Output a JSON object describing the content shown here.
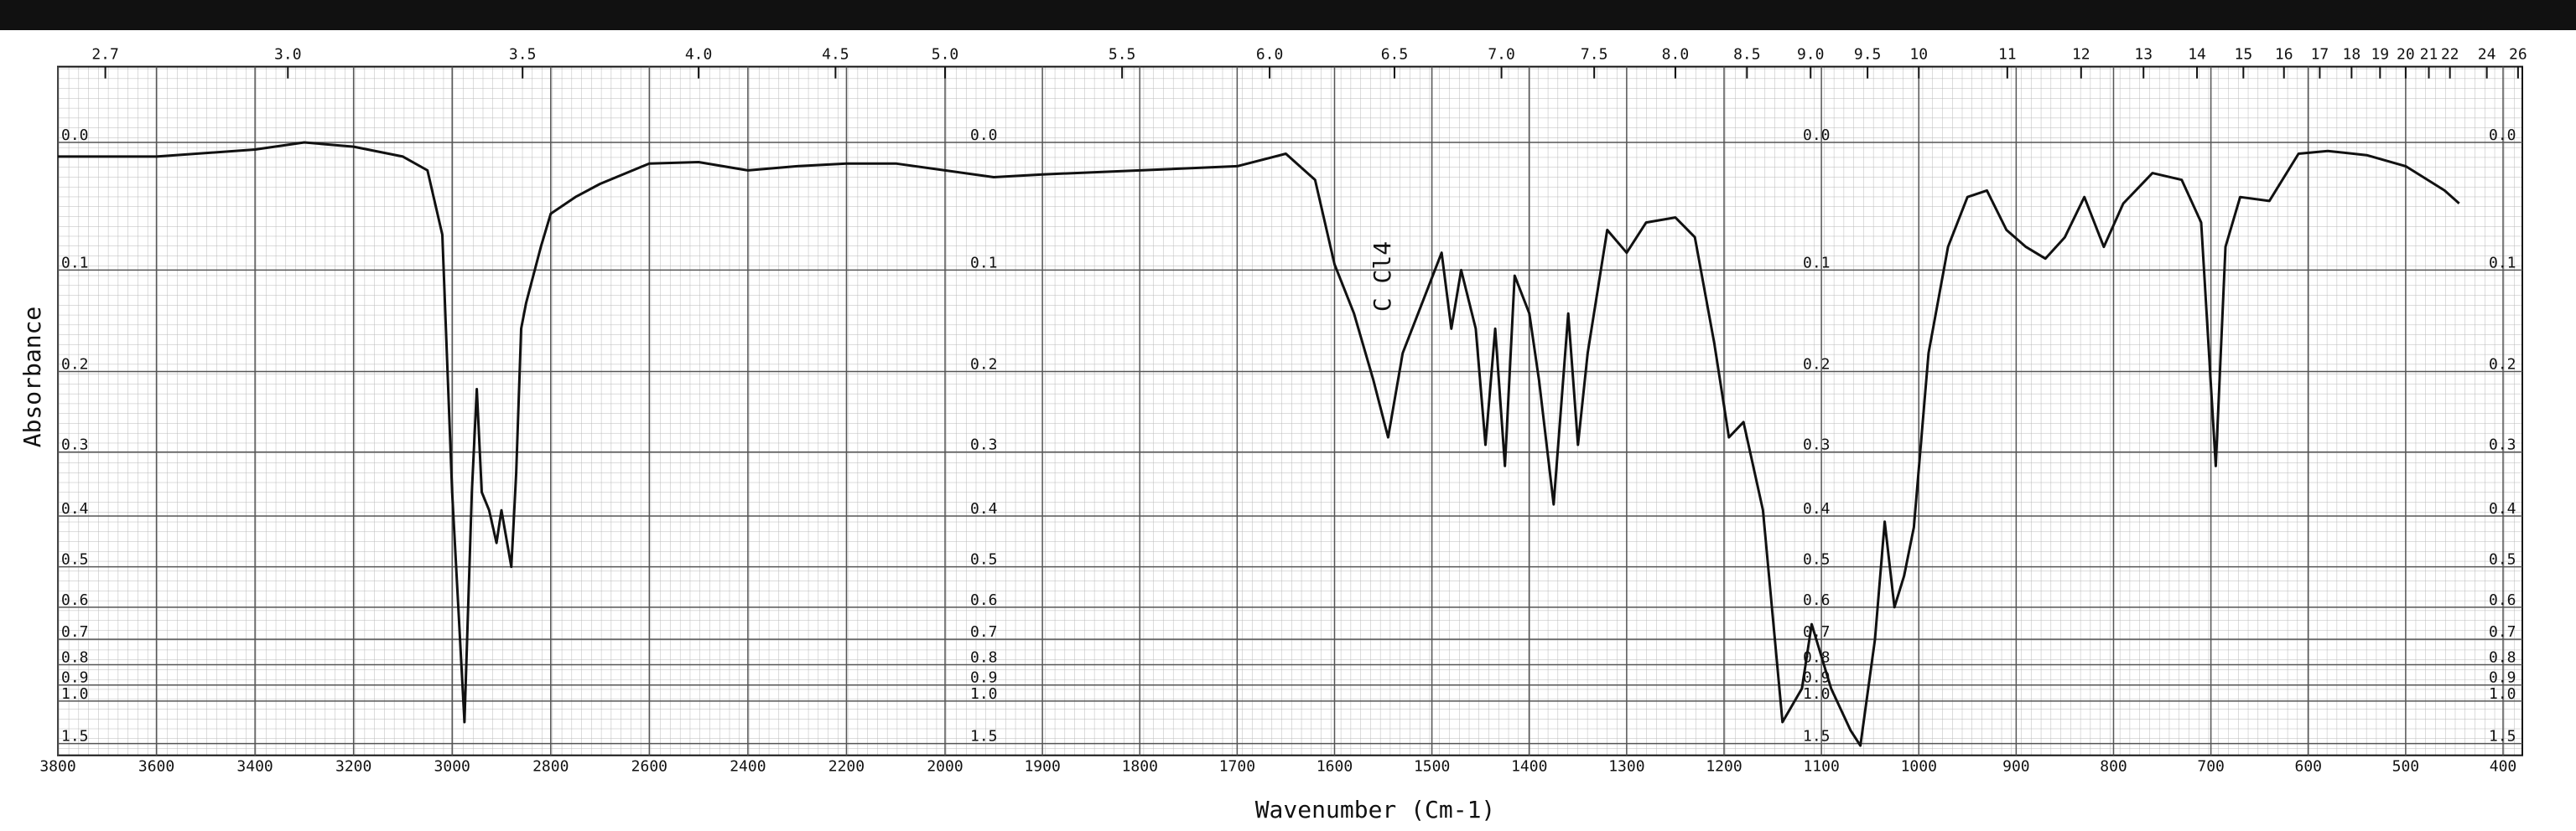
{
  "chart_data": {
    "type": "line",
    "title_left": "Absorbance",
    "x_label": "Wavenumber (Cm-1)",
    "annotation": "C Cl4",
    "y_scale": "transmittance",
    "x_break": 2000,
    "xlim": [
      3800,
      400
    ],
    "ylim": [
      -0.05,
      1.9
    ],
    "xticks": [
      3800,
      3600,
      3400,
      3200,
      3000,
      2800,
      2600,
      2400,
      2200,
      2000,
      1900,
      1800,
      1700,
      1600,
      1500,
      1400,
      1300,
      1200,
      1100,
      1000,
      900,
      800,
      700,
      600,
      500,
      400
    ],
    "x2ticks": [
      2.7,
      {
        "value": 3,
        "label": "3.0"
      },
      3.5,
      {
        "value": 4,
        "label": "4.0"
      },
      4.5,
      {
        "value": 5,
        "label": "5.0"
      },
      5.5,
      {
        "value": 6,
        "label": "6.0"
      },
      6.5,
      {
        "value": 7,
        "label": "7.0"
      },
      7.5,
      {
        "value": 8,
        "label": "8.0"
      },
      8.5,
      {
        "value": 9,
        "label": "9.0"
      },
      9.5,
      10,
      11,
      12,
      13,
      14,
      15,
      16,
      17,
      18,
      19,
      20,
      21,
      22,
      24,
      26
    ],
    "yticks": [
      {
        "value": 0,
        "label": "0.0"
      },
      0.1,
      0.2,
      0.3,
      0.4,
      0.5,
      0.6,
      0.7,
      0.8,
      0.9,
      {
        "value": 1,
        "label": "1.0"
      },
      1.5
    ],
    "grid": true,
    "x": [
      3800,
      3600,
      3400,
      3300,
      3200,
      3100,
      3050,
      3020,
      3000,
      2975,
      2960,
      2950,
      2940,
      2925,
      2910,
      2900,
      2880,
      2870,
      2860,
      2850,
      2820,
      2800,
      2750,
      2700,
      2600,
      2500,
      2400,
      2300,
      2200,
      2100,
      2000,
      1950,
      1900,
      1800,
      1700,
      1650,
      1620,
      1600,
      1580,
      1560,
      1545,
      1530,
      1510,
      1490,
      1480,
      1470,
      1455,
      1445,
      1435,
      1425,
      1415,
      1400,
      1390,
      1375,
      1360,
      1350,
      1340,
      1320,
      1300,
      1280,
      1250,
      1230,
      1210,
      1195,
      1180,
      1160,
      1140,
      1120,
      1110,
      1090,
      1070,
      1060,
      1045,
      1035,
      1025,
      1015,
      1005,
      990,
      970,
      950,
      930,
      910,
      890,
      870,
      850,
      830,
      810,
      790,
      760,
      730,
      710,
      695,
      685,
      670,
      640,
      610,
      580,
      540,
      500,
      460,
      445
    ],
    "series": [
      {
        "color": "#111111",
        "values": [
          0.01,
          0.01,
          0.005,
          0.0,
          0.003,
          0.01,
          0.02,
          0.07,
          0.36,
          1.18,
          0.36,
          0.22,
          0.36,
          0.39,
          0.45,
          0.39,
          0.5,
          0.33,
          0.155,
          0.13,
          0.08,
          0.053,
          0.04,
          0.03,
          0.015,
          0.014,
          0.02,
          0.017,
          0.015,
          0.015,
          0.02,
          0.025,
          0.023,
          0.02,
          0.017,
          0.008,
          0.027,
          0.095,
          0.14,
          0.21,
          0.28,
          0.18,
          0.13,
          0.085,
          0.155,
          0.1,
          0.155,
          0.29,
          0.155,
          0.32,
          0.105,
          0.14,
          0.21,
          0.38,
          0.14,
          0.29,
          0.18,
          0.066,
          0.085,
          0.06,
          0.056,
          0.072,
          0.17,
          0.28,
          0.26,
          0.39,
          1.18,
          0.92,
          0.65,
          0.92,
          1.28,
          1.55,
          0.7,
          0.41,
          0.6,
          0.52,
          0.42,
          0.18,
          0.08,
          0.04,
          0.035,
          0.066,
          0.08,
          0.09,
          0.072,
          0.04,
          0.08,
          0.045,
          0.022,
          0.027,
          0.06,
          0.32,
          0.08,
          0.04,
          0.043,
          0.008,
          0.006,
          0.009,
          0.017,
          0.035,
          0.045
        ]
      }
    ]
  }
}
